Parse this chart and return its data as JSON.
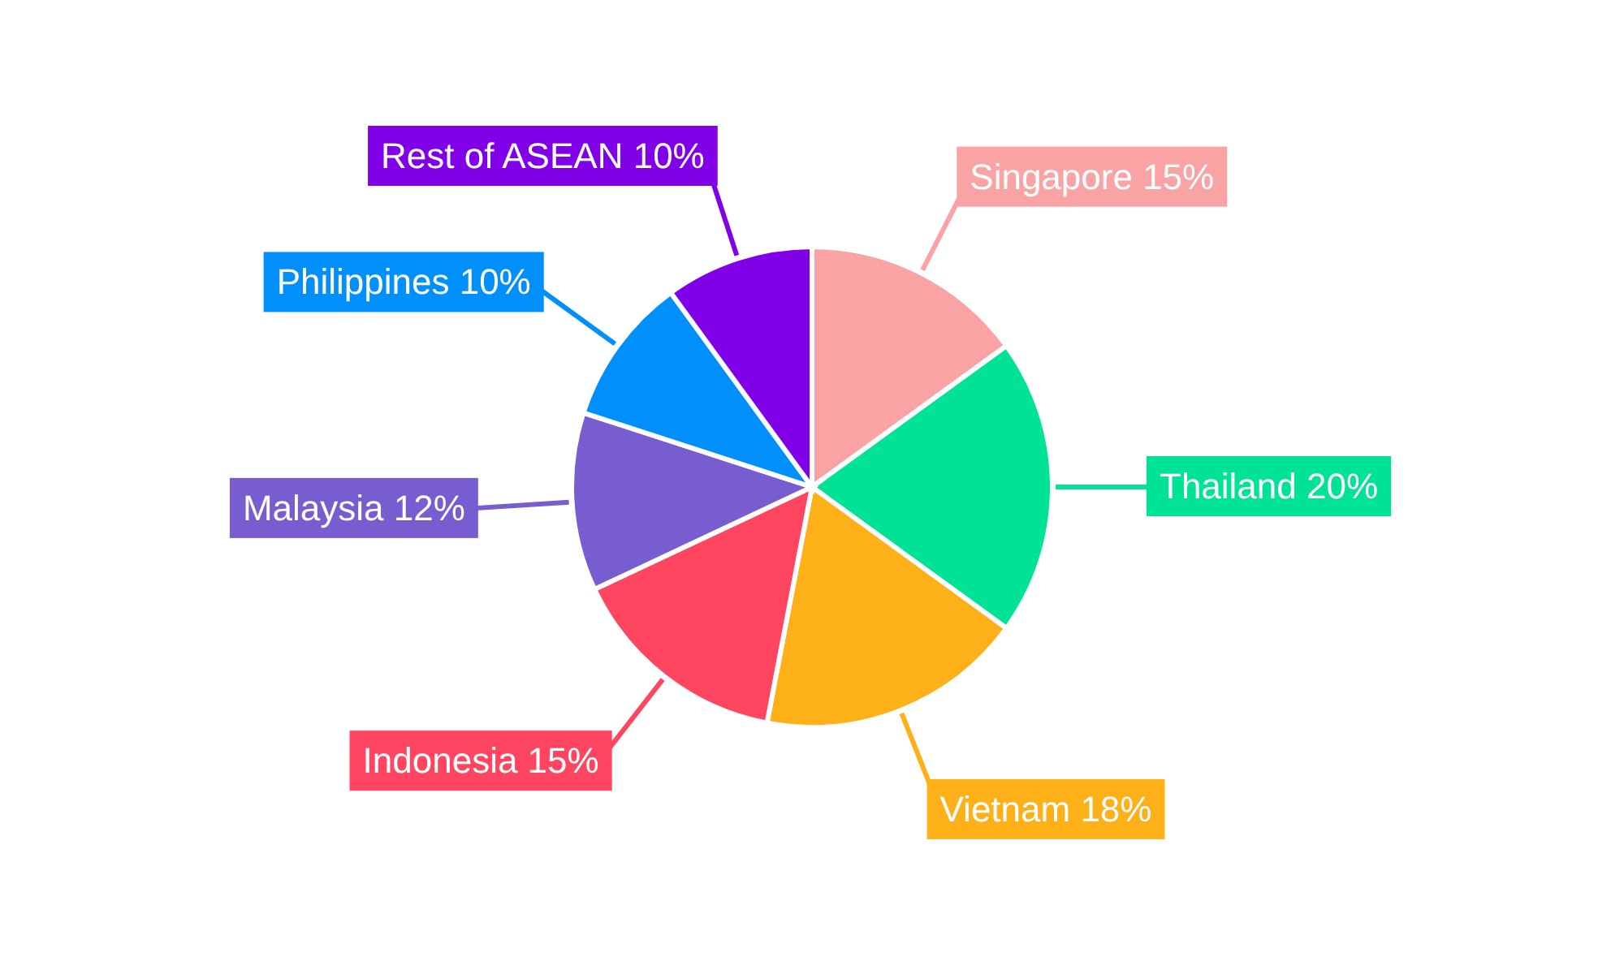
{
  "chart_data": {
    "type": "pie",
    "categories": [
      "Singapore",
      "Thailand",
      "Vietnam",
      "Indonesia",
      "Malaysia",
      "Philippines",
      "Rest of ASEAN"
    ],
    "values": [
      15,
      20,
      18,
      15,
      12,
      10,
      10
    ],
    "value_labels": [
      "15%",
      "20%",
      "18%",
      "15%",
      "12%",
      "10%",
      "10%"
    ],
    "colors": [
      "#f9a3a4",
      "#00e396",
      "#feb019",
      "#ff4560",
      "#775dd0",
      "#008ffb",
      "#8000e8"
    ]
  }
}
